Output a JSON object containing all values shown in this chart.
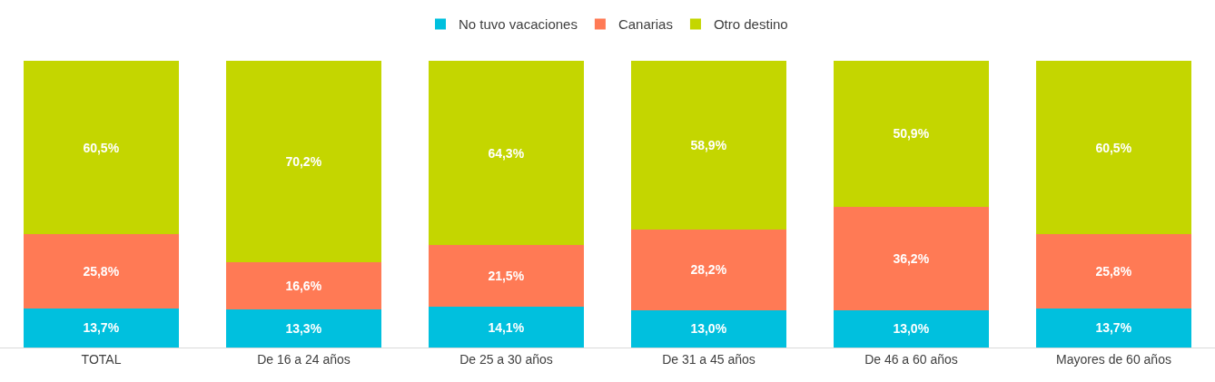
{
  "chart_data": {
    "type": "bar",
    "stacked": true,
    "legend": "top",
    "data_labels": false,
    "categories": [
      "TOTAL",
      "De 16 a 24 años",
      "De 25 a 30 años",
      "De 31 a 45 años",
      "De 46 a 60 años",
      "Mayores de 60 años"
    ],
    "series": [
      {
        "name": "No tuvo vacaciones",
        "color": "#00c0de",
        "values": [
          13.7,
          13.3,
          14.1,
          13.0,
          13.0,
          13.7
        ],
        "value_labels": [
          "13,7%",
          "13,3%",
          "14,1%",
          "13,0%",
          "13,0%",
          "13,7%"
        ]
      },
      {
        "name": "Canarias",
        "color": "#ff7a55",
        "values": [
          25.8,
          16.6,
          21.5,
          28.2,
          36.2,
          25.8
        ],
        "value_labels": [
          "25,8%",
          "16,6%",
          "21,5%",
          "28,2%",
          "36,2%",
          "25,8%"
        ]
      },
      {
        "name": "Otro destino",
        "color": "#c4d600",
        "values": [
          60.5,
          70.2,
          64.3,
          58.9,
          50.9,
          60.5
        ],
        "value_labels": [
          "60,5%",
          "70,2%",
          "64,3%",
          "58,9%",
          "50,9%",
          "60,5%"
        ]
      }
    ]
  }
}
